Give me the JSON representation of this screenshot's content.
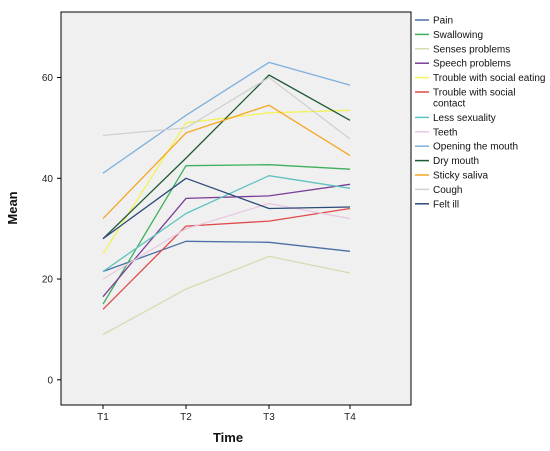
{
  "chart_data": {
    "type": "line",
    "xlabel": "Time",
    "ylabel": "Mean",
    "categories": [
      "T1",
      "T2",
      "T3",
      "T4"
    ],
    "ylim": [
      -5,
      73
    ],
    "yticks": [
      0,
      20,
      40,
      60
    ],
    "grid": false,
    "legend_position": "right",
    "plot_background": "#f0f0f0",
    "series": [
      {
        "name": "Pain",
        "color": "#4a6fa5",
        "values": [
          21.5,
          27.5,
          27.3,
          25.5
        ]
      },
      {
        "name": "Swallowing",
        "color": "#3cb05a",
        "values": [
          15.0,
          42.5,
          42.7,
          41.8
        ]
      },
      {
        "name": "Senses problems",
        "color": "#d4dcb0",
        "values": [
          9.0,
          18.0,
          24.5,
          21.2
        ]
      },
      {
        "name": "Speech problems",
        "color": "#7a3f96",
        "values": [
          16.5,
          36.0,
          36.5,
          38.8
        ]
      },
      {
        "name": "Trouble with social eating",
        "color": "#f2f25a",
        "values": [
          25.0,
          51.0,
          53.0,
          53.5
        ]
      },
      {
        "name": "Trouble with social contact",
        "color": "#e04a4a",
        "values": [
          14.0,
          30.5,
          31.5,
          34.0
        ]
      },
      {
        "name": "Less sexuality",
        "color": "#5ec4c0",
        "values": [
          21.5,
          33.0,
          40.5,
          38.0
        ]
      },
      {
        "name": "Teeth",
        "color": "#e8c8e0",
        "values": [
          20.0,
          30.0,
          35.0,
          32.0
        ]
      },
      {
        "name": "Opening the mouth",
        "color": "#7fb0dd",
        "values": [
          41.0,
          52.5,
          63.0,
          58.5
        ]
      },
      {
        "name": "Dry mouth",
        "color": "#1f5a36",
        "values": [
          28.0,
          44.0,
          60.5,
          51.5
        ]
      },
      {
        "name": "Sticky saliva",
        "color": "#f5a623",
        "values": [
          32.0,
          49.0,
          54.5,
          44.5
        ]
      },
      {
        "name": "Cough",
        "color": "#d0d0d0",
        "values": [
          48.5,
          50.0,
          60.0,
          47.8
        ]
      },
      {
        "name": "Felt ill",
        "color": "#2c4a7a",
        "values": [
          28.0,
          40.0,
          34.0,
          34.3
        ]
      }
    ]
  }
}
